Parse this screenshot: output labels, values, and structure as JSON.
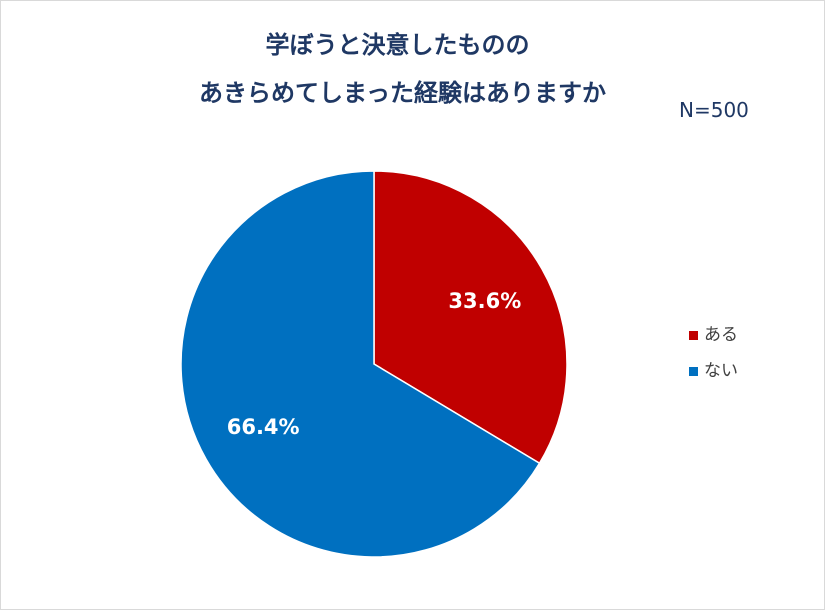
{
  "chart_data": {
    "type": "pie",
    "title_lines": [
      "学ぼうと決意したものの",
      "あきらめてしまった経験はありますか"
    ],
    "sample_size": "N=500",
    "slices": [
      {
        "label": "ある",
        "value": 33.6,
        "value_label": "33.6%",
        "color": "#c00000"
      },
      {
        "label": "ない",
        "value": 66.4,
        "value_label": "66.4%",
        "color": "#0070c0"
      }
    ],
    "start_angle_deg": 0,
    "direction": "clockwise",
    "legend": {
      "position": "right",
      "items": [
        "ある",
        "ない"
      ]
    }
  }
}
